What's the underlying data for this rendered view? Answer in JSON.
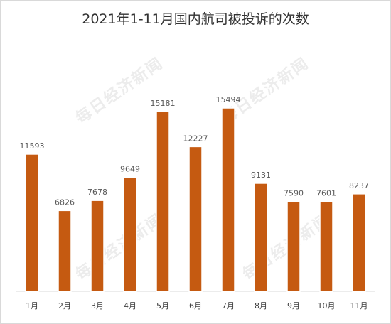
{
  "chart_data": {
    "type": "bar",
    "title": "2021年1-11月国内航司被投诉的次数",
    "categories": [
      "1月",
      "2月",
      "3月",
      "4月",
      "5月",
      "6月",
      "7月",
      "8月",
      "9月",
      "10月",
      "11月"
    ],
    "values": [
      11593,
      6826,
      7678,
      9649,
      15181,
      12227,
      15494,
      9131,
      7590,
      7601,
      8237
    ],
    "ylim": [
      0,
      17500
    ],
    "grid": false,
    "legend": "none",
    "bar_fill": "#c55a11",
    "bar_stroke": "#ffffff",
    "label_color": "#595959",
    "axis_color": "#d9d9d9"
  },
  "watermark": "每日经济新闻"
}
